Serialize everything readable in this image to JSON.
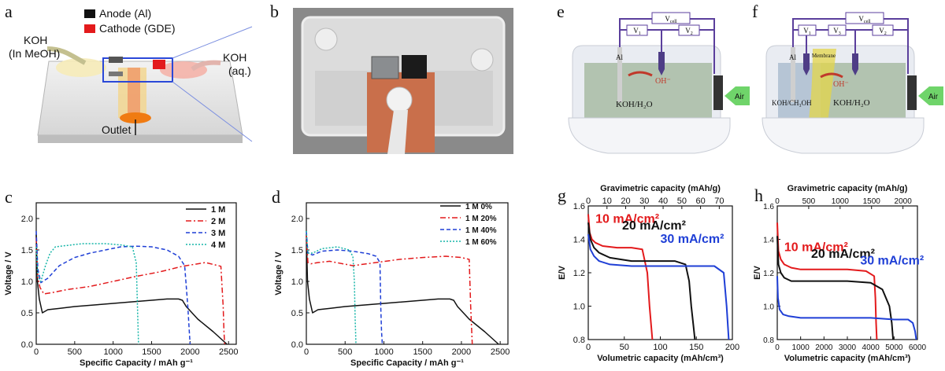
{
  "panel_labels": {
    "a": "a",
    "b": "b",
    "c": "c",
    "d": "d",
    "e": "e",
    "f": "f",
    "g": "g",
    "h": "h"
  },
  "panel_a": {
    "legend": [
      {
        "label": "Anode (Al)",
        "color": "#111111"
      },
      {
        "label": "Cathode (GDE)",
        "color": "#e31a1c"
      }
    ],
    "inlet_left": [
      "KOH",
      "(In MeOH)"
    ],
    "inlet_right": [
      "KOH",
      "(aq.)"
    ],
    "outlet": "Outlet"
  },
  "panel_e": {
    "vcell": "V",
    "vcell_sub": "cell",
    "v1": "V",
    "v1_sub": "1",
    "v2": "V",
    "v2_sub": "2",
    "anode": "Al",
    "ion": "OH⁻",
    "electrolyte": "KOH/H₂O",
    "air": "Air"
  },
  "panel_f": {
    "vcell": "V",
    "vcell_sub": "cell",
    "v1": "V",
    "v1_sub": "1",
    "v3": "V",
    "v3_sub": "3",
    "v2": "V",
    "v2_sub": "2",
    "anode": "Al",
    "membrane": "Membrane",
    "ion": "OH⁻",
    "electrolyte_left": "KOH/CH₃OH",
    "electrolyte_right": "KOH/H₂O",
    "air": "Air"
  },
  "chart_data": [
    {
      "id": "c",
      "type": "line",
      "xlabel": "Specific Capacity / mAh g⁻¹",
      "ylabel": "Voltage / V",
      "xlim": [
        0,
        2600
      ],
      "ylim": [
        0,
        2.25
      ],
      "xticks": [
        0,
        500,
        1000,
        1500,
        2000,
        2500
      ],
      "yticks": [
        0.0,
        0.5,
        1.0,
        1.5,
        2.0
      ],
      "legend_position": "top-right",
      "series": [
        {
          "name": "1 M",
          "color": "#111111",
          "dash": "solid",
          "x": [
            0,
            15,
            40,
            80,
            150,
            300,
            500,
            800,
            1200,
            1500,
            1700,
            1850,
            1900,
            1950,
            2100,
            2300,
            2480
          ],
          "y": [
            1.75,
            1.0,
            0.72,
            0.5,
            0.55,
            0.57,
            0.6,
            0.63,
            0.67,
            0.7,
            0.72,
            0.72,
            0.7,
            0.6,
            0.4,
            0.2,
            0.0
          ]
        },
        {
          "name": "2 M",
          "color": "#e31a1c",
          "dash": "dashdot",
          "x": [
            0,
            20,
            50,
            100,
            200,
            400,
            700,
            1000,
            1300,
            1600,
            1900,
            2200,
            2400,
            2430,
            2440,
            2450
          ],
          "y": [
            1.7,
            1.05,
            0.9,
            0.8,
            0.82,
            0.87,
            0.92,
            1.0,
            1.08,
            1.15,
            1.24,
            1.3,
            1.24,
            0.6,
            0.2,
            0.0
          ]
        },
        {
          "name": "3 M",
          "color": "#1f3fd6",
          "dash": "dash",
          "x": [
            0,
            20,
            60,
            150,
            300,
            500,
            700,
            900,
            1100,
            1300,
            1500,
            1700,
            1850,
            1930,
            1970,
            1990,
            2000
          ],
          "y": [
            1.8,
            1.2,
            0.98,
            1.05,
            1.25,
            1.38,
            1.45,
            1.5,
            1.55,
            1.56,
            1.55,
            1.5,
            1.4,
            1.25,
            0.6,
            0.2,
            0.0
          ]
        },
        {
          "name": "4 M",
          "color": "#16b5a8",
          "dash": "dot",
          "x": [
            0,
            20,
            60,
            120,
            180,
            250,
            600,
            900,
            1100,
            1250,
            1300,
            1320,
            1330
          ],
          "y": [
            1.55,
            1.08,
            1.0,
            1.25,
            1.45,
            1.55,
            1.6,
            1.6,
            1.58,
            1.55,
            1.3,
            0.4,
            0.0
          ]
        }
      ]
    },
    {
      "id": "d",
      "type": "line",
      "xlabel": "Specific Capacity / mAh g⁻¹",
      "ylabel": "Voltage / V",
      "xlim": [
        0,
        2600
      ],
      "ylim": [
        0,
        2.25
      ],
      "xticks": [
        0,
        500,
        1000,
        1500,
        2000,
        2500
      ],
      "yticks": [
        0.0,
        0.5,
        1.0,
        1.5,
        2.0
      ],
      "legend_position": "top-right",
      "series": [
        {
          "name": "1 M 0%",
          "color": "#111111",
          "dash": "solid",
          "x": [
            0,
            15,
            40,
            80,
            150,
            300,
            500,
            800,
            1200,
            1500,
            1700,
            1850,
            1900,
            1950,
            2100,
            2300,
            2480
          ],
          "y": [
            1.75,
            1.0,
            0.72,
            0.5,
            0.55,
            0.57,
            0.6,
            0.63,
            0.67,
            0.7,
            0.72,
            0.72,
            0.7,
            0.6,
            0.4,
            0.2,
            0.0
          ]
        },
        {
          "name": "1 M 20%",
          "color": "#e31a1c",
          "dash": "dashdot",
          "x": [
            0,
            20,
            60,
            150,
            300,
            600,
            900,
            1200,
            1500,
            1800,
            2000,
            2100,
            2120,
            2140
          ],
          "y": [
            1.75,
            1.3,
            1.28,
            1.3,
            1.32,
            1.25,
            1.3,
            1.35,
            1.38,
            1.4,
            1.38,
            1.35,
            0.6,
            0.0
          ]
        },
        {
          "name": "1 M 40%",
          "color": "#1f3fd6",
          "dash": "dash",
          "x": [
            0,
            20,
            80,
            200,
            400,
            600,
            800,
            900,
            950,
            960,
            970,
            980
          ],
          "y": [
            1.8,
            1.45,
            1.42,
            1.48,
            1.5,
            1.48,
            1.44,
            1.4,
            1.3,
            0.6,
            0.2,
            0.0
          ]
        },
        {
          "name": "1 M 60%",
          "color": "#16b5a8",
          "dash": "dot",
          "x": [
            0,
            20,
            80,
            200,
            400,
            550,
            600,
            620,
            630,
            640
          ],
          "y": [
            1.8,
            1.45,
            1.45,
            1.52,
            1.55,
            1.5,
            1.4,
            1.0,
            0.4,
            0.0
          ]
        }
      ]
    },
    {
      "id": "g",
      "type": "line",
      "xlabel": "Volumetric capacity (mAh/cm³)",
      "ylabel": "E/V",
      "top_xlabel": "Gravimetric capacity (mAh/g)",
      "xlim": [
        0,
        200
      ],
      "ylim": [
        0.8,
        1.6
      ],
      "xticks": [
        0,
        50,
        100,
        150,
        200
      ],
      "top_xlim": [
        0,
        77
      ],
      "top_xticks": [
        0,
        10,
        20,
        30,
        40,
        50,
        60,
        70
      ],
      "yticks": [
        0.8,
        1.0,
        1.2,
        1.4,
        1.6
      ],
      "series": [
        {
          "name": "10 mA/cm²",
          "color": "#e31a1c",
          "dash": "solid",
          "x": [
            0,
            2,
            5,
            10,
            20,
            40,
            60,
            75,
            82,
            85,
            87,
            89
          ],
          "y": [
            1.55,
            1.44,
            1.4,
            1.38,
            1.36,
            1.35,
            1.35,
            1.34,
            1.2,
            1.0,
            0.9,
            0.8
          ]
        },
        {
          "name": "20 mA/cm²",
          "color": "#111111",
          "dash": "solid",
          "x": [
            0,
            3,
            8,
            15,
            30,
            60,
            90,
            120,
            135,
            140,
            143,
            146,
            148
          ],
          "y": [
            1.5,
            1.4,
            1.35,
            1.32,
            1.29,
            1.27,
            1.27,
            1.27,
            1.25,
            1.15,
            1.0,
            0.88,
            0.8
          ]
        },
        {
          "name": "30 mA/cm²",
          "color": "#1f3fd6",
          "dash": "solid",
          "x": [
            0,
            3,
            8,
            15,
            30,
            60,
            100,
            140,
            175,
            188,
            192,
            195
          ],
          "y": [
            1.43,
            1.34,
            1.3,
            1.27,
            1.25,
            1.24,
            1.24,
            1.24,
            1.24,
            1.2,
            1.0,
            0.8
          ]
        }
      ],
      "annotations": [
        {
          "text": "10 mA/cm²",
          "color": "#e31a1c",
          "x": 10,
          "y": 1.5
        },
        {
          "text": "20 mA/cm²",
          "color": "#111111",
          "x": 47,
          "y": 1.46
        },
        {
          "text": "30 mA/cm²",
          "color": "#1f3fd6",
          "x": 100,
          "y": 1.38
        }
      ]
    },
    {
      "id": "h",
      "type": "line",
      "xlabel": "Volumetric capacity (mAh/cm³)",
      "ylabel": "E/V",
      "top_xlabel": "Gravimetric capacity (mAh/g)",
      "xlim": [
        0,
        6000
      ],
      "ylim": [
        0.8,
        1.6
      ],
      "xticks": [
        0,
        1000,
        2000,
        3000,
        4000,
        5000,
        6000
      ],
      "top_xlim": [
        0,
        2230
      ],
      "top_xticks": [
        0,
        500,
        1000,
        1500,
        2000
      ],
      "yticks": [
        0.8,
        1.0,
        1.2,
        1.4,
        1.6
      ],
      "series": [
        {
          "name": "10 mA/cm²",
          "color": "#e31a1c",
          "dash": "solid",
          "x": [
            0,
            50,
            150,
            300,
            600,
            1000,
            2000,
            3000,
            3800,
            4150,
            4200,
            4230,
            4260
          ],
          "y": [
            1.5,
            1.33,
            1.28,
            1.25,
            1.23,
            1.22,
            1.22,
            1.22,
            1.21,
            1.18,
            1.05,
            0.9,
            0.8
          ]
        },
        {
          "name": "20 mA/cm²",
          "color": "#111111",
          "dash": "solid",
          "x": [
            0,
            50,
            150,
            300,
            600,
            1000,
            2000,
            3000,
            4000,
            4500,
            4800,
            4900,
            4960
          ],
          "y": [
            1.42,
            1.25,
            1.2,
            1.17,
            1.15,
            1.15,
            1.15,
            1.15,
            1.14,
            1.1,
            1.0,
            0.9,
            0.8
          ]
        },
        {
          "name": "30 mA/cm²",
          "color": "#1f3fd6",
          "dash": "solid",
          "x": [
            0,
            30,
            100,
            250,
            500,
            1000,
            2000,
            3000,
            4000,
            5000,
            5600,
            5800,
            5900,
            5950
          ],
          "y": [
            1.18,
            1.05,
            0.98,
            0.95,
            0.94,
            0.93,
            0.93,
            0.93,
            0.93,
            0.92,
            0.92,
            0.9,
            0.85,
            0.8
          ]
        }
      ],
      "annotations": [
        {
          "text": "10 mA/cm²",
          "color": "#e31a1c",
          "x": 300,
          "y": 1.33
        },
        {
          "text": "20 mA/cm²",
          "color": "#111111",
          "x": 1450,
          "y": 1.29
        },
        {
          "text": "30 mA/cm²",
          "color": "#1f3fd6",
          "x": 3550,
          "y": 1.25
        }
      ]
    }
  ]
}
